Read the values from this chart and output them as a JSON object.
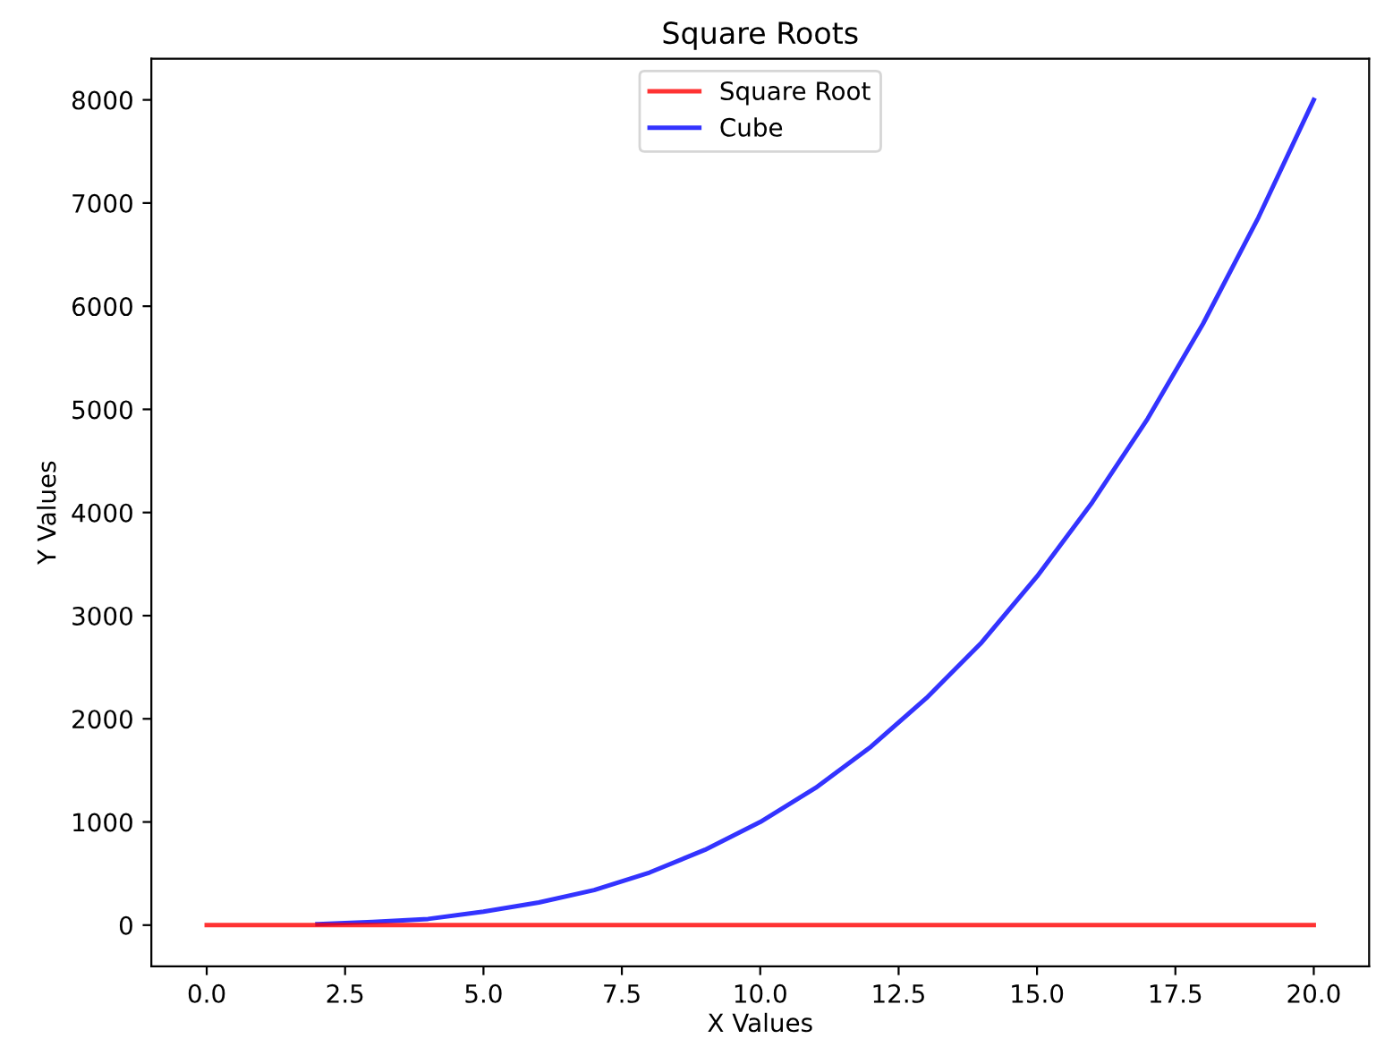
{
  "chart_data": {
    "type": "line",
    "title": "Square Roots",
    "xlabel": "X Values",
    "ylabel": "Y Values",
    "x": [
      0,
      1,
      2,
      3,
      4,
      5,
      6,
      7,
      8,
      9,
      10,
      11,
      12,
      13,
      14,
      15,
      16,
      17,
      18,
      19,
      20
    ],
    "series": [
      {
        "name": "Square Root",
        "color": "#ff0000",
        "values": [
          0,
          0,
          0,
          0,
          0,
          0,
          0,
          0,
          0,
          0,
          0,
          0,
          0,
          0,
          0,
          0,
          0,
          0,
          0,
          0,
          0
        ]
      },
      {
        "name": "Cube",
        "color": "#0000ff",
        "values": [
          null,
          null,
          10,
          30,
          60,
          130,
          220,
          340,
          510,
          730,
          1000,
          1330,
          1730,
          2200,
          2740,
          3380,
          4100,
          4910,
          5830,
          6860,
          8000
        ]
      }
    ],
    "xlim": [
      -1,
      21
    ],
    "ylim": [
      -400,
      8400
    ],
    "xticks": [
      {
        "value": 0,
        "label": "0.0"
      },
      {
        "value": 2.5,
        "label": "2.5"
      },
      {
        "value": 5,
        "label": "5.0"
      },
      {
        "value": 7.5,
        "label": "7.5"
      },
      {
        "value": 10,
        "label": "10.0"
      },
      {
        "value": 12.5,
        "label": "12.5"
      },
      {
        "value": 15,
        "label": "15.0"
      },
      {
        "value": 17.5,
        "label": "17.5"
      },
      {
        "value": 20,
        "label": "20.0"
      }
    ],
    "yticks": [
      0,
      1000,
      2000,
      3000,
      4000,
      5000,
      6000,
      7000,
      8000
    ],
    "legend": "top",
    "grid": false,
    "marker": "none",
    "line_style": "solid"
  }
}
